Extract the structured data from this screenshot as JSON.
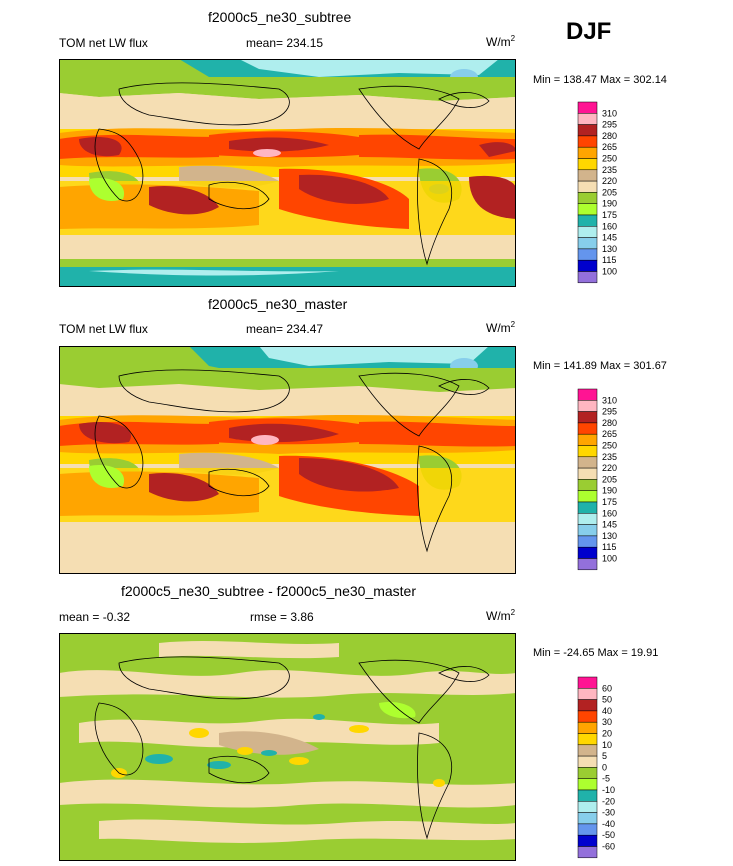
{
  "season": "DJF",
  "unit_base": "W/m",
  "unit_exp": "2",
  "panels": [
    {
      "title": "f2000c5_ne30_subtree",
      "left_label": "TOM net LW flux",
      "stat_label": "mean= 234.15",
      "minmax": "Min = 138.47 Max = 302.14",
      "colorbar": {
        "levels": [
          "310",
          "295",
          "280",
          "265",
          "250",
          "235",
          "220",
          "205",
          "190",
          "175",
          "160",
          "145",
          "130",
          "115",
          "100"
        ],
        "colors": [
          "#ff1493",
          "#ffb6c1",
          "#b22222",
          "#ff4500",
          "#ffa500",
          "#ffd700",
          "#d2b48c",
          "#f5deb3",
          "#9acd32",
          "#adff2f",
          "#20b2aa",
          "#afeeee",
          "#87ceeb",
          "#6495ed",
          "#0000cd",
          "#9370db"
        ]
      }
    },
    {
      "title": "f2000c5_ne30_master",
      "left_label": "TOM net LW flux",
      "stat_label": "mean= 234.47",
      "minmax": "Min = 141.89 Max = 301.67",
      "colorbar": {
        "levels": [
          "310",
          "295",
          "280",
          "265",
          "250",
          "235",
          "220",
          "205",
          "190",
          "175",
          "160",
          "145",
          "130",
          "115",
          "100"
        ],
        "colors": [
          "#ff1493",
          "#ffb6c1",
          "#b22222",
          "#ff4500",
          "#ffa500",
          "#ffd700",
          "#d2b48c",
          "#f5deb3",
          "#9acd32",
          "#adff2f",
          "#20b2aa",
          "#afeeee",
          "#87ceeb",
          "#6495ed",
          "#0000cd",
          "#9370db"
        ]
      }
    },
    {
      "title": "f2000c5_ne30_subtree - f2000c5_ne30_master",
      "left_label": "mean =  -0.32",
      "stat_label": "rmse =   3.86",
      "minmax": "Min = -24.65 Max =  19.91",
      "colorbar": {
        "levels": [
          "60",
          "50",
          "40",
          "30",
          "20",
          "10",
          "5",
          "0",
          "-5",
          "-10",
          "-20",
          "-30",
          "-40",
          "-50",
          "-60"
        ],
        "colors": [
          "#ff1493",
          "#ffb6c1",
          "#b22222",
          "#ff4500",
          "#ffa500",
          "#ffd700",
          "#d2b48c",
          "#f5deb3",
          "#9acd32",
          "#adff2f",
          "#20b2aa",
          "#afeeee",
          "#87ceeb",
          "#6495ed",
          "#0000cd",
          "#9370db"
        ]
      }
    }
  ],
  "chart_data": {
    "type": "heatmap",
    "season": "DJF",
    "variable": "TOM net LW flux",
    "units": "W/m2",
    "maps": [
      {
        "title": "f2000c5_ne30_subtree",
        "mean": 234.15,
        "min": 138.47,
        "max": 302.14,
        "contour_levels": [
          100,
          115,
          130,
          145,
          160,
          175,
          190,
          205,
          220,
          235,
          250,
          265,
          280,
          295,
          310
        ]
      },
      {
        "title": "f2000c5_ne30_master",
        "mean": 234.47,
        "min": 141.89,
        "max": 301.67,
        "contour_levels": [
          100,
          115,
          130,
          145,
          160,
          175,
          190,
          205,
          220,
          235,
          250,
          265,
          280,
          295,
          310
        ]
      },
      {
        "title": "f2000c5_ne30_subtree - f2000c5_ne30_master",
        "mean": -0.32,
        "rmse": 3.86,
        "min": -24.65,
        "max": 19.91,
        "contour_levels": [
          -60,
          -50,
          -40,
          -30,
          -20,
          -10,
          -5,
          0,
          5,
          10,
          20,
          30,
          40,
          50,
          60
        ]
      }
    ]
  }
}
